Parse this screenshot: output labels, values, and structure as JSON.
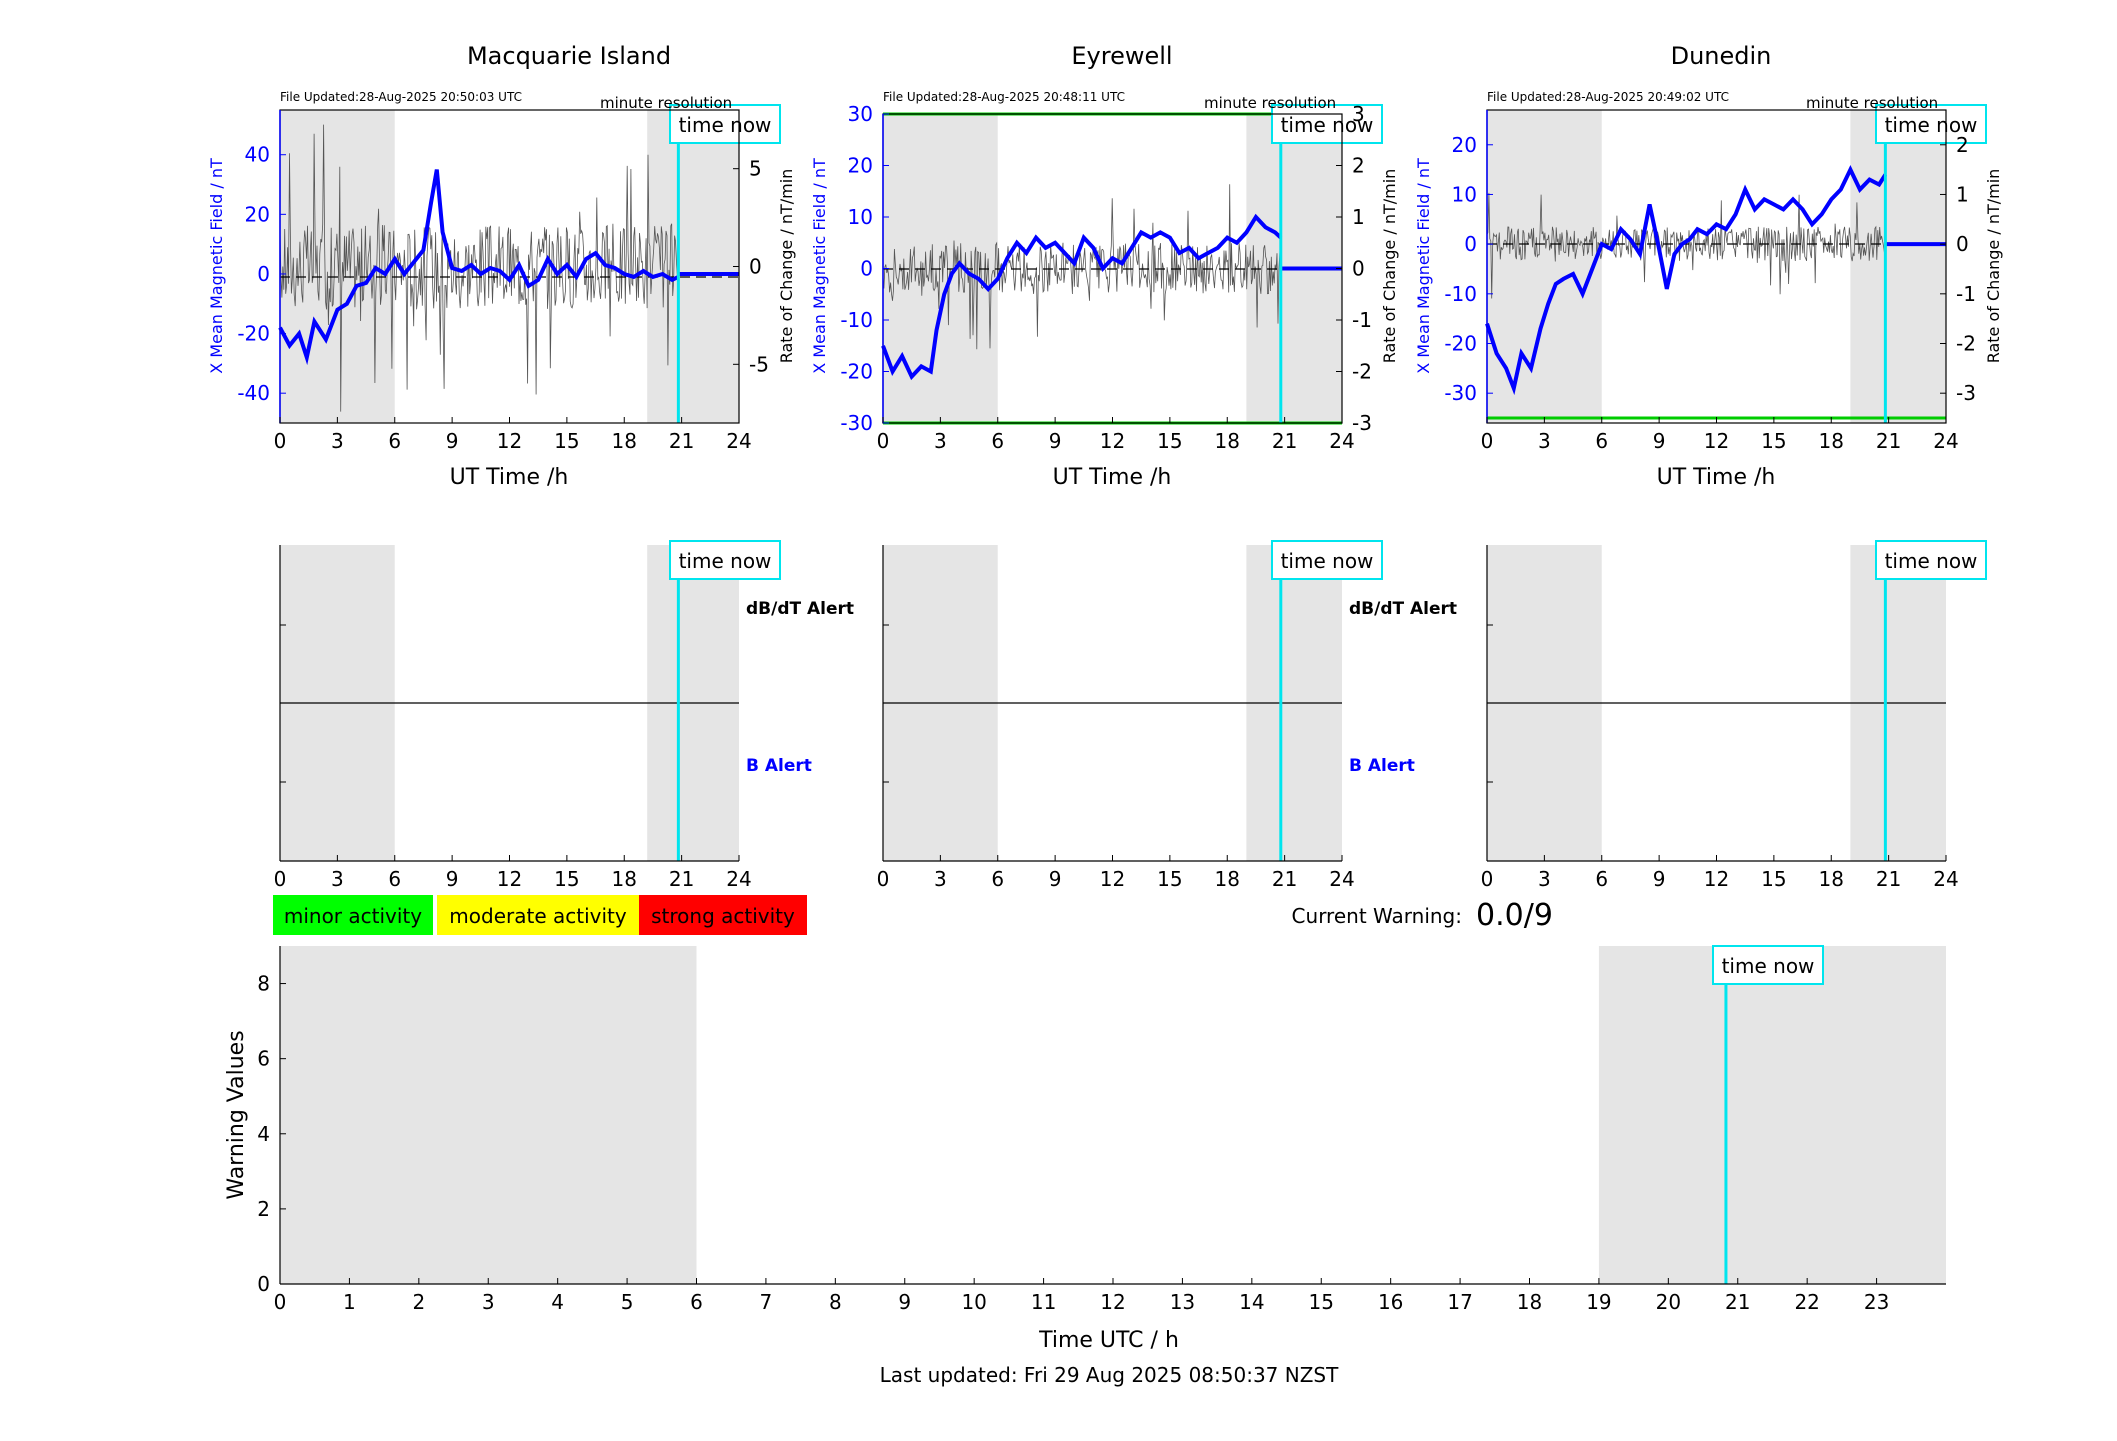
{
  "figure": {
    "footer": "Last updated: Fri 29 Aug 2025 08:50:37 NZST",
    "colors": {
      "field": "#0000ff",
      "rate": "#000000",
      "now_line": "#00e5ee",
      "shade": "#e5e5e5",
      "threshold": "#00cc00"
    }
  },
  "time_now_label": "time now",
  "minute_resolution_label": "minute resolution",
  "dbdt_alert_label": "dB/dT Alert",
  "b_alert_label": "B Alert",
  "legend": {
    "minor": "minor activity",
    "moderate": "moderate activity",
    "strong": "strong activity",
    "colors": {
      "minor": "#00ff00",
      "moderate": "#ffff00",
      "strong": "#ff0000"
    }
  },
  "current_warning": {
    "label": "Current Warning:",
    "value": "0.0/9"
  },
  "chart_data": [
    {
      "type": "line",
      "title": "Macquarie Island",
      "file_updated": "File Updated:28-Aug-2025 20:50:03 UTC",
      "xlabel": "UT Time /h",
      "ylabel_left": "X Mean Magnetic Field / nT",
      "ylabel_right": "Rate of Change / nT/min",
      "xlim": [
        0,
        24
      ],
      "xticks": [
        0,
        3,
        6,
        9,
        12,
        15,
        18,
        21,
        24
      ],
      "ylim_left": [
        -50,
        55
      ],
      "yticks_left": [
        -40,
        -20,
        0,
        20,
        40
      ],
      "ylim_right": [
        -8,
        8
      ],
      "yticks_right": [
        -5,
        0,
        5
      ],
      "shaded_x": [
        [
          0,
          6
        ],
        [
          19.2,
          24
        ]
      ],
      "time_now": 20.83,
      "threshold_left": null,
      "field_points": [
        [
          0,
          -18
        ],
        [
          0.5,
          -24
        ],
        [
          1,
          -20
        ],
        [
          1.4,
          -28
        ],
        [
          1.8,
          -16
        ],
        [
          2.4,
          -22
        ],
        [
          3,
          -12
        ],
        [
          3.5,
          -10
        ],
        [
          4,
          -4
        ],
        [
          4.5,
          -3
        ],
        [
          5,
          2
        ],
        [
          5.5,
          0
        ],
        [
          6,
          5
        ],
        [
          6.5,
          0
        ],
        [
          7,
          4
        ],
        [
          7.5,
          8
        ],
        [
          7.9,
          24
        ],
        [
          8.2,
          35
        ],
        [
          8.5,
          14
        ],
        [
          9,
          2
        ],
        [
          9.5,
          1
        ],
        [
          10,
          3
        ],
        [
          10.5,
          0
        ],
        [
          11,
          2
        ],
        [
          11.5,
          1
        ],
        [
          12,
          -2
        ],
        [
          12.5,
          3
        ],
        [
          13,
          -4
        ],
        [
          13.5,
          -2
        ],
        [
          14,
          5
        ],
        [
          14.5,
          0
        ],
        [
          15,
          3
        ],
        [
          15.5,
          -1
        ],
        [
          16,
          5
        ],
        [
          16.5,
          7
        ],
        [
          17,
          3
        ],
        [
          17.5,
          2
        ],
        [
          18,
          0
        ],
        [
          18.5,
          -1
        ],
        [
          19,
          1
        ],
        [
          19.5,
          -1
        ],
        [
          20,
          0
        ],
        [
          20.5,
          -2
        ],
        [
          20.83,
          -1
        ]
      ],
      "flat_after_now": 0,
      "rate_amplitude": 2.2
    },
    {
      "type": "line",
      "title": "Eyrewell",
      "file_updated": "File Updated:28-Aug-2025 20:48:11 UTC",
      "xlabel": "UT Time /h",
      "ylabel_left": "X Mean Magnetic Field / nT",
      "ylabel_right": "Rate of Change / nT/min",
      "xlim": [
        0,
        24
      ],
      "xticks": [
        0,
        3,
        6,
        9,
        12,
        15,
        18,
        21,
        24
      ],
      "ylim_left": [
        -30,
        30
      ],
      "yticks_left": [
        -30,
        -20,
        -10,
        0,
        10,
        20,
        30
      ],
      "ylim_right": [
        -3,
        3
      ],
      "yticks_right": [
        -3,
        -2,
        -1,
        0,
        1,
        2,
        3
      ],
      "shaded_x": [
        [
          0,
          6
        ],
        [
          19,
          24
        ]
      ],
      "time_now": 20.8,
      "threshold_left": [
        30,
        -30
      ],
      "field_points": [
        [
          0,
          -15
        ],
        [
          0.5,
          -20
        ],
        [
          1,
          -17
        ],
        [
          1.5,
          -21
        ],
        [
          2,
          -19
        ],
        [
          2.5,
          -20
        ],
        [
          2.8,
          -12
        ],
        [
          3.2,
          -5
        ],
        [
          3.6,
          -1
        ],
        [
          4,
          1
        ],
        [
          4.5,
          -1
        ],
        [
          5,
          -2
        ],
        [
          5.5,
          -4
        ],
        [
          6,
          -2
        ],
        [
          6.5,
          2
        ],
        [
          7,
          5
        ],
        [
          7.5,
          3
        ],
        [
          8,
          6
        ],
        [
          8.5,
          4
        ],
        [
          9,
          5
        ],
        [
          9.5,
          3
        ],
        [
          10,
          1
        ],
        [
          10.5,
          6
        ],
        [
          11,
          4
        ],
        [
          11.5,
          0
        ],
        [
          12,
          2
        ],
        [
          12.5,
          1
        ],
        [
          13,
          4
        ],
        [
          13.5,
          7
        ],
        [
          14,
          6
        ],
        [
          14.5,
          7
        ],
        [
          15,
          6
        ],
        [
          15.5,
          3
        ],
        [
          16,
          4
        ],
        [
          16.5,
          2
        ],
        [
          17,
          3
        ],
        [
          17.5,
          4
        ],
        [
          18,
          6
        ],
        [
          18.5,
          5
        ],
        [
          19,
          7
        ],
        [
          19.5,
          10
        ],
        [
          20,
          8
        ],
        [
          20.5,
          7
        ],
        [
          20.8,
          6
        ]
      ],
      "flat_after_now": 0,
      "rate_amplitude": 0.5
    },
    {
      "type": "line",
      "title": "Dunedin",
      "file_updated": "File Updated:28-Aug-2025 20:49:02 UTC",
      "xlabel": "UT Time /h",
      "ylabel_left": "X Mean Magnetic Field / nT",
      "ylabel_right": "Rate of Change / nT/min",
      "xlim": [
        0,
        24
      ],
      "xticks": [
        0,
        3,
        6,
        9,
        12,
        15,
        18,
        21,
        24
      ],
      "ylim_left": [
        -36,
        27
      ],
      "yticks_left": [
        -30,
        -20,
        -10,
        0,
        10,
        20
      ],
      "ylim_right": [
        -3.6,
        2.7
      ],
      "yticks_right": [
        -3,
        -2,
        -1,
        0,
        1,
        2
      ],
      "shaded_x": [
        [
          0,
          6
        ],
        [
          19,
          24
        ]
      ],
      "time_now": 20.83,
      "threshold_left": [
        -35
      ],
      "field_points": [
        [
          0,
          -16
        ],
        [
          0.5,
          -22
        ],
        [
          1,
          -25
        ],
        [
          1.4,
          -29
        ],
        [
          1.8,
          -22
        ],
        [
          2.3,
          -25
        ],
        [
          2.8,
          -17
        ],
        [
          3.2,
          -12
        ],
        [
          3.6,
          -8
        ],
        [
          4,
          -7
        ],
        [
          4.5,
          -6
        ],
        [
          5,
          -10
        ],
        [
          5.5,
          -5
        ],
        [
          6,
          0
        ],
        [
          6.5,
          -1
        ],
        [
          7,
          3
        ],
        [
          7.5,
          1
        ],
        [
          8,
          -2
        ],
        [
          8.5,
          8
        ],
        [
          9,
          -1
        ],
        [
          9.4,
          -9
        ],
        [
          9.8,
          -2
        ],
        [
          10.2,
          0
        ],
        [
          10.6,
          1
        ],
        [
          11,
          3
        ],
        [
          11.5,
          2
        ],
        [
          12,
          4
        ],
        [
          12.5,
          3
        ],
        [
          13,
          6
        ],
        [
          13.5,
          11
        ],
        [
          14,
          7
        ],
        [
          14.5,
          9
        ],
        [
          15,
          8
        ],
        [
          15.5,
          7
        ],
        [
          16,
          9
        ],
        [
          16.5,
          7
        ],
        [
          17,
          4
        ],
        [
          17.5,
          6
        ],
        [
          18,
          9
        ],
        [
          18.5,
          11
        ],
        [
          19,
          15
        ],
        [
          19.5,
          11
        ],
        [
          20,
          13
        ],
        [
          20.5,
          12
        ],
        [
          20.83,
          14
        ]
      ],
      "flat_after_now": 0,
      "rate_amplitude": 0.35
    },
    {
      "type": "line",
      "title": "",
      "xlabel": "Time UTC / h",
      "ylabel": "Warning Values",
      "xlim": [
        0,
        24
      ],
      "xticks": [
        0,
        1,
        2,
        3,
        4,
        5,
        6,
        7,
        8,
        9,
        10,
        11,
        12,
        13,
        14,
        15,
        16,
        17,
        18,
        19,
        20,
        21,
        22,
        23
      ],
      "ylim": [
        0,
        9
      ],
      "yticks": [
        0,
        2,
        4,
        6,
        8
      ],
      "shaded_x": [
        [
          0,
          6
        ],
        [
          19,
          24
        ]
      ],
      "time_now": 20.83,
      "values": []
    }
  ]
}
